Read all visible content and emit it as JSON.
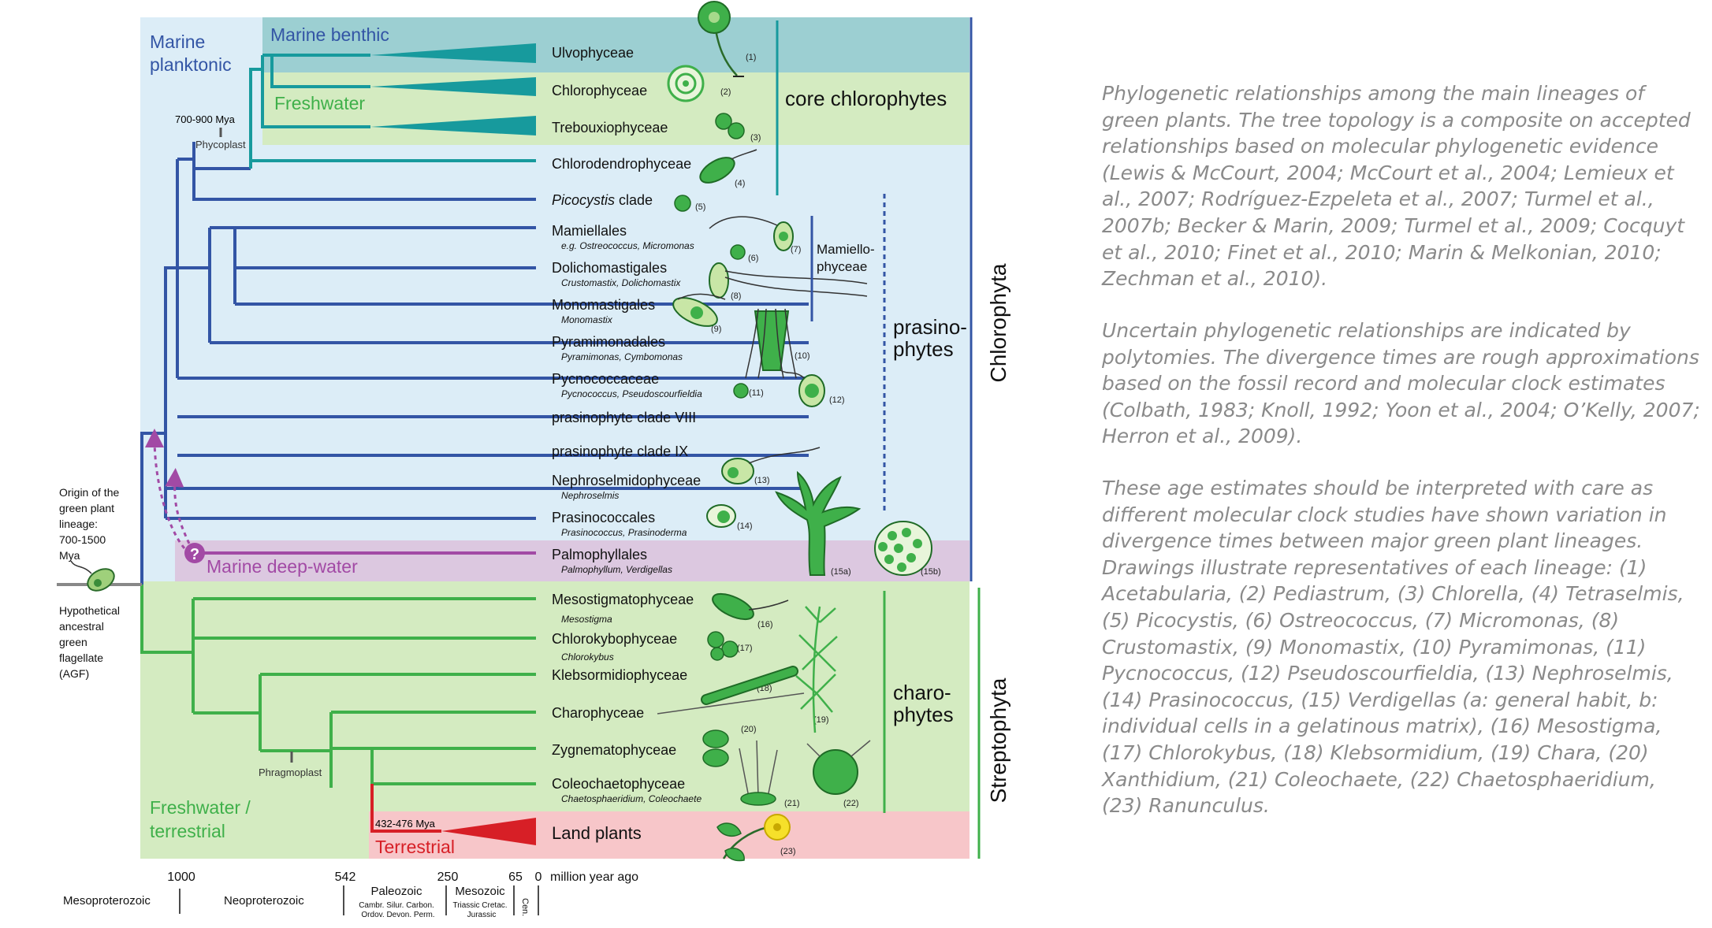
{
  "habitats": {
    "marine_planktonic_1": "Marine",
    "marine_planktonic_2": "planktonic",
    "marine_benthic": "Marine benthic",
    "freshwater": "Freshwater",
    "marine_deep_water": "Marine deep-water",
    "freshwater_terrestrial_1": "Freshwater /",
    "freshwater_terrestrial_2": "terrestrial",
    "terrestrial": "Terrestrial"
  },
  "groups": {
    "core_chlorophytes": "core chlorophytes",
    "mamiello_1": "Mamiello-",
    "mamiello_2": "phyceae",
    "prasino_1": "prasino-",
    "prasino_2": "phytes",
    "charo_1": "charo-",
    "charo_2": "phytes",
    "chlorophyta": "Chlorophyta",
    "streptophyta": "Streptophyta"
  },
  "nodes": {
    "core_age": "700-900 Mya",
    "phycoplast": "Phycoplast",
    "phragmoplast": "Phragmoplast",
    "land_age": "432-476 Mya",
    "question": "?"
  },
  "origin": {
    "lines": [
      "Origin of the",
      "green plant",
      "lineage:",
      "700-1500",
      "Mya"
    ]
  },
  "agf": {
    "lines": [
      "Hypothetical",
      "ancestral",
      "green",
      "flagellate",
      "(AGF)"
    ]
  },
  "lineages": [
    {
      "name": "Ulvophyceae",
      "sub": "",
      "num": "(1)"
    },
    {
      "name": "Chlorophyceae",
      "sub": "",
      "num": "(2)"
    },
    {
      "name": "Trebouxiophyceae",
      "sub": "",
      "num": "(3)"
    },
    {
      "name": "Chlorodendrophyceae",
      "sub": "",
      "num": "(4)"
    },
    {
      "name": "Picocystis",
      "name_suffix": " clade",
      "sub": "",
      "num": "(5)"
    },
    {
      "name": "Mamiellales",
      "sub": "e.g. Ostreococcus, Micromonas",
      "num": "(6)",
      "num2": "(7)"
    },
    {
      "name": "Dolichomastigales",
      "sub": "Crustomastix, Dolichomastix",
      "num": "(8)"
    },
    {
      "name": "Monomastigales",
      "sub": "Monomastix",
      "num": "(9)"
    },
    {
      "name": "Pyramimonadales",
      "sub": "Pyramimonas, Cymbomonas",
      "num": "(10)"
    },
    {
      "name": "Pycnococcaceae",
      "sub": "Pycnococcus, Pseudoscourfieldia",
      "num": "(11)",
      "num2": "(12)"
    },
    {
      "name": "prasinophyte clade VIII",
      "sub": "",
      "num": ""
    },
    {
      "name": "prasinophyte clade IX",
      "sub": "",
      "num": ""
    },
    {
      "name": "Nephroselmidophyceae",
      "sub": "Nephroselmis",
      "num": "(13)"
    },
    {
      "name": "Prasinococcales",
      "sub": "Prasinococcus, Prasinoderma",
      "num": "(14)"
    },
    {
      "name": "Palmophyllales",
      "sub": "Palmophyllum, Verdigellas",
      "num": "(15a)",
      "num2": "(15b)"
    },
    {
      "name": "Mesostigmatophyceae",
      "sub": "Mesostigma",
      "num": "(16)"
    },
    {
      "name": "Chlorokybophyceae",
      "sub": "Chlorokybus",
      "num": "(17)"
    },
    {
      "name": "Klebsormidiophyceae",
      "sub": "",
      "num": "(18)"
    },
    {
      "name": "Charophyceae",
      "sub": "",
      "num": "(19)"
    },
    {
      "name": "Zygnematophyceae",
      "sub": "",
      "num": "(20)"
    },
    {
      "name": "Coleochaetophyceae",
      "sub": "Chaetosphaeridium, Coleochaete",
      "num": "(21)",
      "num2": "(22)"
    },
    {
      "name": "Land plants",
      "sub": "",
      "num": "(23)"
    }
  ],
  "timescale": {
    "ticks": [
      "1000",
      "542",
      "250",
      "65",
      "0"
    ],
    "unit": "million year ago",
    "eons": [
      "Mesoproterozoic",
      "Neoproterozoic"
    ],
    "paleozoic": "Paleozoic",
    "paleozoic_periods_1": "Cambr.  Silur.   Carbon.",
    "paleozoic_periods_2": "Ordov. Devon.  Perm.",
    "mesozoic": "Mesozoic",
    "mesozoic_periods_1": "Triassic  Cretac.",
    "mesozoic_periods_2": "Jurassic",
    "cenozoic": "Cen."
  },
  "caption": {
    "p1": "Phylogenetic relationships among the main lineages of green plants. The tree topology is a composite on accepted relationships based on molecular phylogenetic evidence (Lewis & McCourt, 2004; McCourt et al., 2004; Lemieux et al., 2007; Rodríguez-Ezpeleta et al., 2007; Turmel et al., 2007b; Becker & Marin, 2009; Turmel et al., 2009; Cocquyt et al., 2010; Finet et al., 2010; Marin & Melkonian, 2010; Zechman et al., 2010).",
    "p2": "Uncertain phylogenetic relationships are indicated by polytomies. The divergence times are rough approximations based on the fossil record and molecular clock estimates (Colbath, 1983; Knoll, 1992; Yoon et al., 2004; O’Kelly, 2007; Herron et al., 2009).",
    "p3": "These age estimates should be interpreted with care as different molecular clock studies have shown variation in divergence times between major green plant lineages. Drawings illustrate representatives of each lineage: (1) Acetabularia, (2) Pediastrum, (3) Chlorella, (4) Tetraselmis, (5) Picocystis, (6) Ostreococcus, (7) Micromonas, (8) Crustomastix, (9) Monomastix, (10) Pyramimonas, (11) Pycnococcus, (12) Pseudoscourfieldia, (13) Nephroselmis, (14) Prasinococcus, (15) Verdigellas (a: general habit, b: individual cells in a gelatinous matrix), (16) Mesostigma, (17) Chlorokybus, (18) Klebsormidium, (19) Chara, (20) Xanthidium, (21) Coleochaete, (22) Chaetosphaeridium, (23) Ranunculus."
  },
  "colors": {
    "planktonic_bg": "#dcedf7",
    "benthic_bg": "#9ccfd2",
    "freshwater_bg": "#d4ebc1",
    "deep_bg": "#dcc8e0",
    "terrestrial_bg": "#f7c6c9",
    "blue": "#3355a5",
    "teal": "#179a9d",
    "green": "#3fb04a",
    "purple": "#a24aa5",
    "red": "#d71f26"
  }
}
